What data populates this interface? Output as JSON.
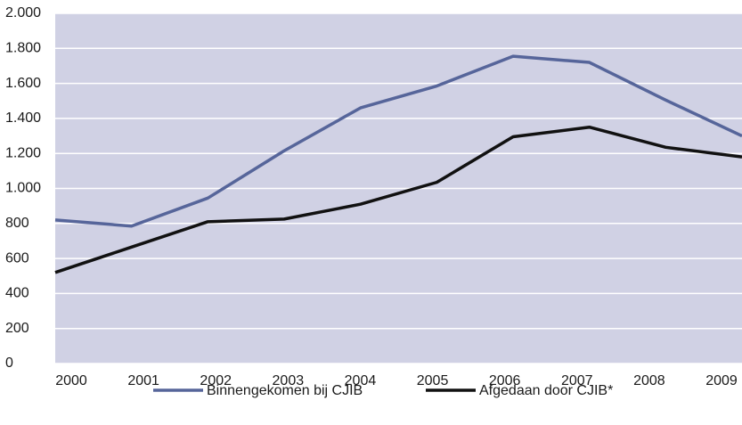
{
  "chart_data": {
    "type": "line",
    "categories": [
      "2000",
      "2001",
      "2002",
      "2003",
      "2004",
      "2005",
      "2006",
      "2007",
      "2008",
      "2009"
    ],
    "series": [
      {
        "name": "Binnengekomen bij CJIB",
        "color": "#56659a",
        "values": [
          820,
          785,
          945,
          1215,
          1460,
          1585,
          1755,
          1720,
          1505,
          1300
        ]
      },
      {
        "name": "Afgedaan door CJIB*",
        "color": "#111111",
        "values": [
          520,
          665,
          810,
          825,
          910,
          1035,
          1295,
          1350,
          1235,
          1180
        ]
      }
    ],
    "ylim": [
      0,
      2000
    ],
    "yticks": [
      0,
      200,
      400,
      600,
      800,
      {
        "value": 1000,
        "label": "1.000"
      },
      {
        "value": 1200,
        "label": "1.200"
      },
      {
        "value": 1400,
        "label": "1.400"
      },
      {
        "value": 1600,
        "label": "1.600"
      },
      {
        "value": 1800,
        "label": "1.800"
      },
      {
        "value": 2000,
        "label": "2.000"
      }
    ],
    "grid": true,
    "background": "#d0d1e4",
    "legend": "bottom"
  }
}
